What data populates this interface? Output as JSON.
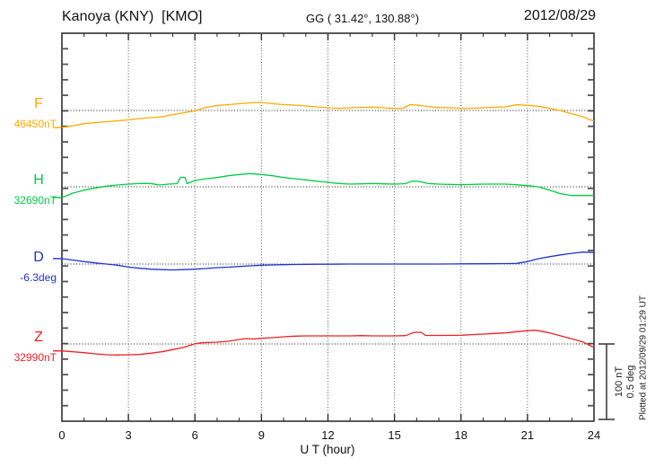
{
  "header": {
    "station_title": "Kanoya (KNY)  [KMO]",
    "gg_coordinates": "GG ( 31.42°, 130.88°)",
    "date": "2012/08/29"
  },
  "footer_note": "Plotted at 2012/09/29 01:29 UT",
  "scale_bar": {
    "line1": "100 nT",
    "line2": "0.5 deg"
  },
  "chart_data": {
    "type": "line",
    "title": "Kanoya (KNY) [KMO] magnetogram for 2012/08/29",
    "xlabel": "U T (hour)",
    "x_range": [
      0,
      24
    ],
    "x_ticks": [
      0,
      3,
      6,
      9,
      12,
      15,
      18,
      21,
      24
    ],
    "grid": "dotted vertical lines every 3 hours, dotted horizontal reference line per component",
    "scale": {
      "nT_per_division": 100,
      "deg_per_division": 0.5
    },
    "series": [
      {
        "name": "F",
        "unit": "nT",
        "reference": 46450,
        "reference_label": "46450nT",
        "color": "#ffaa00",
        "points": [
          [
            0,
            46427.4
          ],
          [
            0.5,
            46429.8
          ],
          [
            1,
            46432.5
          ],
          [
            1.5,
            46433.9
          ],
          [
            2,
            46435.1
          ],
          [
            2.5,
            46436.3
          ],
          [
            3,
            46437.5
          ],
          [
            3.5,
            46439.3
          ],
          [
            4,
            46440.5
          ],
          [
            4.5,
            46441.7
          ],
          [
            5,
            46444.4
          ],
          [
            5.5,
            46447.0
          ],
          [
            6,
            46449.6
          ],
          [
            6.5,
            46454.2
          ],
          [
            7,
            46456.5
          ],
          [
            7.5,
            46457.7
          ],
          [
            8,
            46458.9
          ],
          [
            8.5,
            46460.1
          ],
          [
            9,
            46460.7
          ],
          [
            9.5,
            46458.9
          ],
          [
            10,
            46457.7
          ],
          [
            10.5,
            46457.1
          ],
          [
            11,
            46456.0
          ],
          [
            11.5,
            46454.8
          ],
          [
            12,
            46453.6
          ],
          [
            12.5,
            46452.7
          ],
          [
            13,
            46453.6
          ],
          [
            13.5,
            46454.2
          ],
          [
            14,
            46454.4
          ],
          [
            14.5,
            46453.6
          ],
          [
            15,
            46452.7
          ],
          [
            15.4,
            46453.0
          ],
          [
            15.7,
            46457.7
          ],
          [
            16,
            46457.1
          ],
          [
            16.5,
            46455.4
          ],
          [
            17,
            46453.8
          ],
          [
            17.5,
            46453.6
          ],
          [
            18,
            46452.7
          ],
          [
            18.5,
            46453.0
          ],
          [
            19,
            46453.6
          ],
          [
            19.5,
            46454.2
          ],
          [
            20,
            46454.8
          ],
          [
            20.5,
            46457.5
          ],
          [
            21,
            46456.8
          ],
          [
            21.5,
            46455.6
          ],
          [
            22,
            46452.7
          ],
          [
            22.5,
            46449.6
          ],
          [
            23,
            46445.6
          ],
          [
            23.5,
            46441.7
          ],
          [
            24,
            46435.7
          ]
        ]
      },
      {
        "name": "H",
        "unit": "nT",
        "reference": 32690,
        "reference_label": "32690nT",
        "color": "#00cc44",
        "points": [
          [
            0,
            32675.7
          ],
          [
            0.5,
            32681.7
          ],
          [
            1,
            32685.6
          ],
          [
            1.5,
            32688.5
          ],
          [
            2,
            32690.8
          ],
          [
            2.5,
            32692.4
          ],
          [
            3,
            32693.6
          ],
          [
            3.5,
            32694.4
          ],
          [
            4,
            32694.4
          ],
          [
            4.4,
            32692.4
          ],
          [
            4.8,
            32693.6
          ],
          [
            5.2,
            32694.2
          ],
          [
            5.35,
            32702.5
          ],
          [
            5.55,
            32702.5
          ],
          [
            5.65,
            32694.2
          ],
          [
            6,
            32698.5
          ],
          [
            6.5,
            32700.7
          ],
          [
            7,
            32702.3
          ],
          [
            7.5,
            32704.6
          ],
          [
            8,
            32706.3
          ],
          [
            8.5,
            32707.5
          ],
          [
            9,
            32706.3
          ],
          [
            9.5,
            32704.6
          ],
          [
            10,
            32702.3
          ],
          [
            10.5,
            32700.7
          ],
          [
            11,
            32699.2
          ],
          [
            11.5,
            32697.5
          ],
          [
            12,
            32696.0
          ],
          [
            12.5,
            32694.4
          ],
          [
            13,
            32693.6
          ],
          [
            13.5,
            32693.9
          ],
          [
            14,
            32694.4
          ],
          [
            14.5,
            32693.9
          ],
          [
            15,
            32693.6
          ],
          [
            15.5,
            32694.2
          ],
          [
            15.8,
            32697.5
          ],
          [
            16.1,
            32697.1
          ],
          [
            16.5,
            32694.4
          ],
          [
            17,
            32693.6
          ],
          [
            18,
            32692.7
          ],
          [
            19,
            32693.6
          ],
          [
            20,
            32693.6
          ],
          [
            20.5,
            32692.7
          ],
          [
            21,
            32691.5
          ],
          [
            21.5,
            32690.0
          ],
          [
            22,
            32685.6
          ],
          [
            22.5,
            32680.8
          ],
          [
            23,
            32678.5
          ],
          [
            23.5,
            32678.5
          ],
          [
            24,
            32678.5
          ]
        ]
      },
      {
        "name": "D",
        "unit": "deg",
        "reference": -6.3,
        "reference_label": "-6.3deg",
        "color": "#2233cc",
        "points": [
          [
            0,
            -6.264
          ],
          [
            0.5,
            -6.274
          ],
          [
            1,
            -6.284
          ],
          [
            1.5,
            -6.292
          ],
          [
            2,
            -6.3
          ],
          [
            2.5,
            -6.308
          ],
          [
            3,
            -6.32
          ],
          [
            3.5,
            -6.328
          ],
          [
            4,
            -6.334
          ],
          [
            4.5,
            -6.337
          ],
          [
            5,
            -6.339
          ],
          [
            5.5,
            -6.337
          ],
          [
            6,
            -6.334
          ],
          [
            6.5,
            -6.33
          ],
          [
            7,
            -6.324
          ],
          [
            7.5,
            -6.321
          ],
          [
            8,
            -6.316
          ],
          [
            8.5,
            -6.312
          ],
          [
            9,
            -6.308
          ],
          [
            9.5,
            -6.306
          ],
          [
            10,
            -6.304
          ],
          [
            10.5,
            -6.303
          ],
          [
            11,
            -6.302
          ],
          [
            11.5,
            -6.301
          ],
          [
            12,
            -6.301
          ],
          [
            13,
            -6.3
          ],
          [
            14,
            -6.3
          ],
          [
            15,
            -6.3
          ],
          [
            16,
            -6.3
          ],
          [
            17,
            -6.3
          ],
          [
            18,
            -6.299
          ],
          [
            19,
            -6.298
          ],
          [
            20,
            -6.297
          ],
          [
            20.5,
            -6.296
          ],
          [
            21,
            -6.284
          ],
          [
            21.5,
            -6.264
          ],
          [
            22,
            -6.251
          ],
          [
            22.5,
            -6.239
          ],
          [
            23,
            -6.229
          ],
          [
            23.5,
            -6.221
          ],
          [
            24,
            -6.224
          ]
        ]
      },
      {
        "name": "Z",
        "unit": "nT",
        "reference": 32990,
        "reference_label": "32990nT",
        "color": "#ee2222",
        "points": [
          [
            0,
            32980.8
          ],
          [
            0.5,
            32979.6
          ],
          [
            1,
            32978.5
          ],
          [
            1.5,
            32976.9
          ],
          [
            2,
            32975.7
          ],
          [
            2.5,
            32975.4
          ],
          [
            3,
            32975.7
          ],
          [
            3.5,
            32976.1
          ],
          [
            4,
            32977.7
          ],
          [
            4.5,
            32979.6
          ],
          [
            5,
            32982.5
          ],
          [
            5.5,
            32985.6
          ],
          [
            6,
            32990.4
          ],
          [
            6.3,
            32991.5
          ],
          [
            7,
            32992.4
          ],
          [
            7.5,
            32993.6
          ],
          [
            8,
            32996.0
          ],
          [
            8.3,
            32997.1
          ],
          [
            8.6,
            32996.5
          ],
          [
            9,
            32997.5
          ],
          [
            9.5,
            32998.3
          ],
          [
            10,
            32999.5
          ],
          [
            10.5,
            33000.4
          ],
          [
            11,
            33000.7
          ],
          [
            12,
            33000.7
          ],
          [
            13,
            33000.7
          ],
          [
            13.5,
            33001.1
          ],
          [
            14,
            33000.7
          ],
          [
            15,
            33000.7
          ],
          [
            15.5,
            33001.1
          ],
          [
            15.9,
            33005.5
          ],
          [
            16.2,
            33005.5
          ],
          [
            16.4,
            33001.3
          ],
          [
            17,
            33001.3
          ],
          [
            18,
            33001.5
          ],
          [
            19,
            33003.1
          ],
          [
            19.5,
            33003.9
          ],
          [
            20,
            33004.6
          ],
          [
            20.5,
            33006.3
          ],
          [
            21,
            33007.5
          ],
          [
            21.3,
            33008.2
          ],
          [
            21.5,
            33007.5
          ],
          [
            22,
            33004.6
          ],
          [
            22.5,
            33000.7
          ],
          [
            23,
            32996.8
          ],
          [
            23.5,
            32992.7
          ],
          [
            24,
            32985.2
          ]
        ]
      }
    ]
  }
}
